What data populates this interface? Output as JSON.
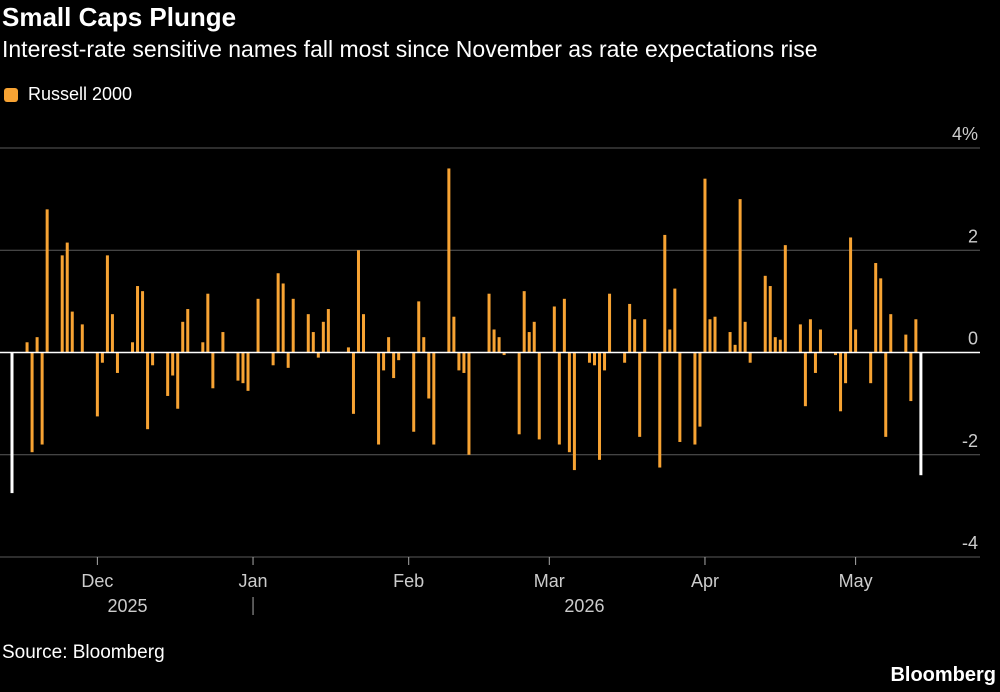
{
  "title": "Small Caps Plunge",
  "subtitle": "Interest-rate sensitive names fall most since November as rate expectations rise",
  "legend": {
    "label": "Russell 2000",
    "color": "#f7a333"
  },
  "source": "Source: Bloomberg",
  "brand": "Bloomberg",
  "chart_data": {
    "type": "bar",
    "title": "Small Caps Plunge",
    "xlabel": "",
    "ylabel": "",
    "ylim": [
      -4,
      4
    ],
    "ytick_values": [
      4,
      2,
      0,
      -2,
      -4
    ],
    "ytick_labels": [
      "4%",
      "2",
      "0",
      "-2",
      "-4"
    ],
    "grid": true,
    "legend_position": "top-left",
    "x_period_start": "2025-11-14",
    "x_period_end": "2026-05-19",
    "month_ticks": [
      {
        "label": "Dec",
        "date": "2025-12-01"
      },
      {
        "label": "Jan",
        "date": "2026-01-01"
      },
      {
        "label": "Feb",
        "date": "2026-02-01"
      },
      {
        "label": "Mar",
        "date": "2026-03-01"
      },
      {
        "label": "Apr",
        "date": "2026-04-01"
      },
      {
        "label": "May",
        "date": "2026-05-01"
      }
    ],
    "year_labels": [
      {
        "label": "2025",
        "date": "2025-12-07"
      },
      {
        "label": "2026",
        "date": "2026-03-08"
      }
    ],
    "year_separator_date": "2026-01-01",
    "bar_color": "#f7a333",
    "highlight_color": "#ffffff",
    "series": [
      {
        "name": "Russell 2000",
        "points": [
          {
            "date": "2025-11-14",
            "value": -2.75,
            "highlight": true
          },
          {
            "date": "2025-11-17",
            "value": 0.2
          },
          {
            "date": "2025-11-18",
            "value": -1.95
          },
          {
            "date": "2025-11-19",
            "value": 0.3
          },
          {
            "date": "2025-11-20",
            "value": -1.8
          },
          {
            "date": "2025-11-21",
            "value": 2.8
          },
          {
            "date": "2025-11-24",
            "value": 1.9
          },
          {
            "date": "2025-11-25",
            "value": 2.15
          },
          {
            "date": "2025-11-26",
            "value": 0.8
          },
          {
            "date": "2025-11-28",
            "value": 0.55
          },
          {
            "date": "2025-12-01",
            "value": -1.25
          },
          {
            "date": "2025-12-02",
            "value": -0.2
          },
          {
            "date": "2025-12-03",
            "value": 1.9
          },
          {
            "date": "2025-12-04",
            "value": 0.75
          },
          {
            "date": "2025-12-05",
            "value": -0.4
          },
          {
            "date": "2025-12-08",
            "value": 0.2
          },
          {
            "date": "2025-12-09",
            "value": 1.3
          },
          {
            "date": "2025-12-10",
            "value": 1.2
          },
          {
            "date": "2025-12-11",
            "value": -1.5
          },
          {
            "date": "2025-12-12",
            "value": -0.25
          },
          {
            "date": "2025-12-15",
            "value": -0.85
          },
          {
            "date": "2025-12-16",
            "value": -0.45
          },
          {
            "date": "2025-12-17",
            "value": -1.1
          },
          {
            "date": "2025-12-18",
            "value": 0.6
          },
          {
            "date": "2025-12-19",
            "value": 0.85
          },
          {
            "date": "2025-12-22",
            "value": 0.2
          },
          {
            "date": "2025-12-23",
            "value": 1.15
          },
          {
            "date": "2025-12-24",
            "value": -0.7
          },
          {
            "date": "2025-12-26",
            "value": 0.4
          },
          {
            "date": "2025-12-29",
            "value": -0.55
          },
          {
            "date": "2025-12-30",
            "value": -0.6
          },
          {
            "date": "2025-12-31",
            "value": -0.75
          },
          {
            "date": "2026-01-02",
            "value": 1.05
          },
          {
            "date": "2026-01-05",
            "value": -0.25
          },
          {
            "date": "2026-01-06",
            "value": 1.55
          },
          {
            "date": "2026-01-07",
            "value": 1.35
          },
          {
            "date": "2026-01-08",
            "value": -0.3
          },
          {
            "date": "2026-01-09",
            "value": 1.05
          },
          {
            "date": "2026-01-12",
            "value": 0.75
          },
          {
            "date": "2026-01-13",
            "value": 0.4
          },
          {
            "date": "2026-01-14",
            "value": -0.1
          },
          {
            "date": "2026-01-15",
            "value": 0.6
          },
          {
            "date": "2026-01-16",
            "value": 0.85
          },
          {
            "date": "2026-01-20",
            "value": 0.1
          },
          {
            "date": "2026-01-21",
            "value": -1.2
          },
          {
            "date": "2026-01-22",
            "value": 2.0
          },
          {
            "date": "2026-01-23",
            "value": 0.75
          },
          {
            "date": "2026-01-26",
            "value": -1.8
          },
          {
            "date": "2026-01-27",
            "value": -0.35
          },
          {
            "date": "2026-01-28",
            "value": 0.3
          },
          {
            "date": "2026-01-29",
            "value": -0.5
          },
          {
            "date": "2026-01-30",
            "value": -0.15
          },
          {
            "date": "2026-02-02",
            "value": -1.55
          },
          {
            "date": "2026-02-03",
            "value": 1.0
          },
          {
            "date": "2026-02-04",
            "value": 0.3
          },
          {
            "date": "2026-02-05",
            "value": -0.9
          },
          {
            "date": "2026-02-06",
            "value": -1.8
          },
          {
            "date": "2026-02-09",
            "value": 3.6
          },
          {
            "date": "2026-02-10",
            "value": 0.7
          },
          {
            "date": "2026-02-11",
            "value": -0.35
          },
          {
            "date": "2026-02-12",
            "value": -0.4
          },
          {
            "date": "2026-02-13",
            "value": -2.0
          },
          {
            "date": "2026-02-17",
            "value": 1.15
          },
          {
            "date": "2026-02-18",
            "value": 0.45
          },
          {
            "date": "2026-02-19",
            "value": 0.3
          },
          {
            "date": "2026-02-20",
            "value": -0.05
          },
          {
            "date": "2026-02-23",
            "value": -1.6
          },
          {
            "date": "2026-02-24",
            "value": 1.2
          },
          {
            "date": "2026-02-25",
            "value": 0.4
          },
          {
            "date": "2026-02-26",
            "value": 0.6
          },
          {
            "date": "2026-02-27",
            "value": -1.7
          },
          {
            "date": "2026-03-02",
            "value": 0.9
          },
          {
            "date": "2026-03-03",
            "value": -1.8
          },
          {
            "date": "2026-03-04",
            "value": 1.05
          },
          {
            "date": "2026-03-05",
            "value": -1.95
          },
          {
            "date": "2026-03-06",
            "value": -2.3
          },
          {
            "date": "2026-03-09",
            "value": -0.2
          },
          {
            "date": "2026-03-10",
            "value": -0.25
          },
          {
            "date": "2026-03-11",
            "value": -2.1
          },
          {
            "date": "2026-03-12",
            "value": -0.35
          },
          {
            "date": "2026-03-13",
            "value": 1.15
          },
          {
            "date": "2026-03-16",
            "value": -0.2
          },
          {
            "date": "2026-03-17",
            "value": 0.95
          },
          {
            "date": "2026-03-18",
            "value": 0.65
          },
          {
            "date": "2026-03-19",
            "value": -1.65
          },
          {
            "date": "2026-03-20",
            "value": 0.65
          },
          {
            "date": "2026-03-23",
            "value": -2.25
          },
          {
            "date": "2026-03-24",
            "value": 2.3
          },
          {
            "date": "2026-03-25",
            "value": 0.45
          },
          {
            "date": "2026-03-26",
            "value": 1.25
          },
          {
            "date": "2026-03-27",
            "value": -1.75
          },
          {
            "date": "2026-03-30",
            "value": -1.8
          },
          {
            "date": "2026-03-31",
            "value": -1.45
          },
          {
            "date": "2026-04-01",
            "value": 3.4
          },
          {
            "date": "2026-04-02",
            "value": 0.65
          },
          {
            "date": "2026-04-03",
            "value": 0.7
          },
          {
            "date": "2026-04-06",
            "value": 0.4
          },
          {
            "date": "2026-04-07",
            "value": 0.15
          },
          {
            "date": "2026-04-08",
            "value": 3.0
          },
          {
            "date": "2026-04-09",
            "value": 0.6
          },
          {
            "date": "2026-04-10",
            "value": -0.2
          },
          {
            "date": "2026-04-13",
            "value": 1.5
          },
          {
            "date": "2026-04-14",
            "value": 1.3
          },
          {
            "date": "2026-04-15",
            "value": 0.3
          },
          {
            "date": "2026-04-16",
            "value": 0.25
          },
          {
            "date": "2026-04-17",
            "value": 2.1
          },
          {
            "date": "2026-04-20",
            "value": 0.55
          },
          {
            "date": "2026-04-21",
            "value": -1.05
          },
          {
            "date": "2026-04-22",
            "value": 0.65
          },
          {
            "date": "2026-04-23",
            "value": -0.4
          },
          {
            "date": "2026-04-24",
            "value": 0.45
          },
          {
            "date": "2026-04-27",
            "value": -0.05
          },
          {
            "date": "2026-04-28",
            "value": -1.15
          },
          {
            "date": "2026-04-29",
            "value": -0.6
          },
          {
            "date": "2026-04-30",
            "value": 2.25
          },
          {
            "date": "2026-05-01",
            "value": 0.45
          },
          {
            "date": "2026-05-04",
            "value": -0.6
          },
          {
            "date": "2026-05-05",
            "value": 1.75
          },
          {
            "date": "2026-05-06",
            "value": 1.45
          },
          {
            "date": "2026-05-07",
            "value": -1.65
          },
          {
            "date": "2026-05-08",
            "value": 0.75
          },
          {
            "date": "2026-05-11",
            "value": 0.35
          },
          {
            "date": "2026-05-12",
            "value": -0.95
          },
          {
            "date": "2026-05-13",
            "value": 0.65
          },
          {
            "date": "2026-05-14",
            "value": -2.4,
            "highlight": true
          }
        ]
      }
    ]
  }
}
